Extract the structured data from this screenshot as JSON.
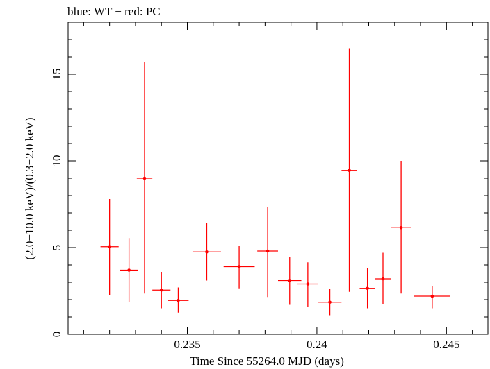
{
  "chart_data": {
    "type": "scatter",
    "title": "blue: WT − red: PC",
    "xlabel": "Time Since 55264.0 MJD (days)",
    "ylabel": "(2.0−10.0 keV)/(0.3−2.0 keV)",
    "xlim": [
      0.2304,
      0.2466
    ],
    "ylim": [
      0,
      18
    ],
    "xticks": [
      {
        "value": 0.235,
        "label": "0.235"
      },
      {
        "value": 0.24,
        "label": "0.24"
      },
      {
        "value": 0.245,
        "label": "0.245"
      }
    ],
    "yticks": [
      {
        "value": 0,
        "label": "0"
      },
      {
        "value": 5,
        "label": "5"
      },
      {
        "value": 10,
        "label": "10"
      },
      {
        "value": 15,
        "label": "15"
      }
    ],
    "series": [
      {
        "color": "#ff0000",
        "points": [
          {
            "x": 0.232,
            "xerr": 0.00035,
            "y": 5.05,
            "ylo": 2.25,
            "yhi": 7.8
          },
          {
            "x": 0.23275,
            "xerr": 0.00035,
            "y": 3.7,
            "ylo": 1.85,
            "yhi": 5.55
          },
          {
            "x": 0.23335,
            "xerr": 0.0003,
            "y": 9.0,
            "ylo": 2.35,
            "yhi": 15.7
          },
          {
            "x": 0.234,
            "xerr": 0.00035,
            "y": 2.55,
            "ylo": 1.5,
            "yhi": 3.6
          },
          {
            "x": 0.23465,
            "xerr": 0.0004,
            "y": 1.95,
            "ylo": 1.25,
            "yhi": 2.7
          },
          {
            "x": 0.23575,
            "xerr": 0.00055,
            "y": 4.75,
            "ylo": 3.1,
            "yhi": 6.4
          },
          {
            "x": 0.237,
            "xerr": 0.0006,
            "y": 3.9,
            "ylo": 2.65,
            "yhi": 5.1
          },
          {
            "x": 0.2381,
            "xerr": 0.0004,
            "y": 4.8,
            "ylo": 2.15,
            "yhi": 7.35
          },
          {
            "x": 0.23895,
            "xerr": 0.00045,
            "y": 3.1,
            "ylo": 1.7,
            "yhi": 4.45
          },
          {
            "x": 0.23965,
            "xerr": 0.0004,
            "y": 2.9,
            "ylo": 1.6,
            "yhi": 4.15
          },
          {
            "x": 0.2405,
            "xerr": 0.00045,
            "y": 1.85,
            "ylo": 1.1,
            "yhi": 2.6
          },
          {
            "x": 0.24125,
            "xerr": 0.0003,
            "y": 9.45,
            "ylo": 2.45,
            "yhi": 16.5
          },
          {
            "x": 0.24195,
            "xerr": 0.0003,
            "y": 2.65,
            "ylo": 1.5,
            "yhi": 3.8
          },
          {
            "x": 0.24255,
            "xerr": 0.0003,
            "y": 3.2,
            "ylo": 1.75,
            "yhi": 4.7
          },
          {
            "x": 0.24325,
            "xerr": 0.0004,
            "y": 6.15,
            "ylo": 2.35,
            "yhi": 10.0
          },
          {
            "x": 0.24445,
            "xerr": 0.0007,
            "y": 2.2,
            "ylo": 1.5,
            "yhi": 2.8
          }
        ]
      }
    ],
    "grid": false
  }
}
